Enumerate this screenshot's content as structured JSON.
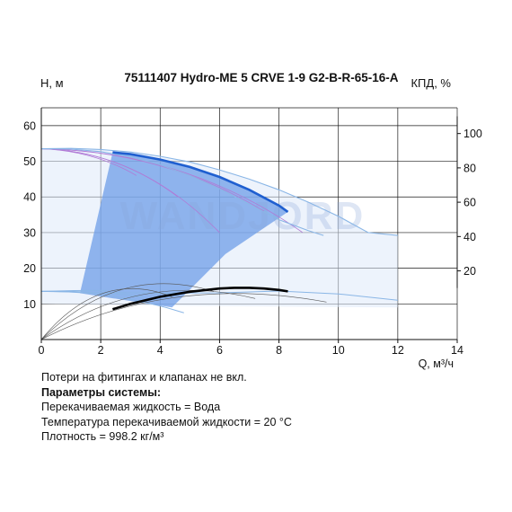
{
  "chart_data": {
    "type": "line",
    "title": "75111407 Hydro-ME 5 CRVE 1-9 G2-B-R-65-16-A",
    "ylabel": "H, м",
    "y2label": "КПД, %",
    "xlabel": "Q, м³/ч",
    "watermark": "WANDJORD",
    "xlim": [
      0,
      14
    ],
    "ylim": [
      0,
      65
    ],
    "y2lim": [
      -20,
      115
    ],
    "x_ticks": [
      0,
      2,
      4,
      6,
      8,
      10,
      12,
      14
    ],
    "y_ticks": [
      10,
      20,
      30,
      40,
      50,
      60
    ],
    "y2_ticks": [
      20,
      40,
      60,
      80,
      100
    ],
    "grid": true,
    "colors": {
      "grid": "#1a1a1a",
      "head_main": "#1f5fd0",
      "efficiency_main": "#000000",
      "speed_curves": "#8ab6e6",
      "system_curves": "#b07ad6",
      "operating_area": "#6e9ee8",
      "npsh_area": "#dfe9fa"
    },
    "series": [
      {
        "role": "head-max",
        "x": [
          0,
          1,
          2,
          3,
          4,
          5,
          6,
          7,
          8,
          9,
          10,
          11,
          12
        ],
        "y": [
          53.5,
          53.6,
          53.3,
          52.6,
          51.4,
          49.8,
          47.6,
          45.0,
          42.0,
          38.5,
          34.6,
          30.0,
          29.2
        ]
      },
      {
        "role": "head-speed-2",
        "x": [
          0,
          1,
          2,
          3,
          4,
          5,
          6,
          7,
          8,
          9,
          9.5
        ],
        "y": [
          53.5,
          53.4,
          52.7,
          51.2,
          49.0,
          46.0,
          42.3,
          38.0,
          33.6,
          30.5,
          29.2
        ]
      },
      {
        "role": "head-operating",
        "x": [
          2.4,
          3,
          4,
          5,
          6,
          7,
          8,
          8.3
        ],
        "y": [
          52.5,
          52.0,
          50.5,
          48.4,
          45.6,
          42.0,
          37.6,
          35.8
        ]
      },
      {
        "role": "efficiency-operating",
        "x": [
          2.4,
          3,
          4,
          5,
          6,
          6.5,
          7,
          7.5,
          8,
          8.3
        ],
        "y": [
          8.5,
          10.0,
          12.0,
          13.4,
          14.3,
          14.5,
          14.5,
          14.3,
          13.9,
          13.5
        ]
      },
      {
        "role": "efficiency-max",
        "x": [
          0,
          2,
          4,
          6,
          8,
          10,
          12
        ],
        "y": [
          0,
          8.8,
          13.6,
          15.0,
          14.4,
          12.6,
          10.8
        ]
      },
      {
        "role": "npsh",
        "x": [
          0,
          2,
          4,
          6,
          8,
          10,
          12
        ],
        "y": [
          13.5,
          13.2,
          13.0,
          13.1,
          13.6,
          12.8,
          11.0
        ]
      }
    ],
    "notes": {
      "line1": "Потери на фитингах и клапанах не вкл.",
      "line2": "Параметры системы:",
      "line3": "Перекачиваемая жидкость = Вода",
      "line4": "Температура перекачиваемой жидкости = 20 °C",
      "line5": "Плотность = 998.2 кг/м³"
    }
  }
}
